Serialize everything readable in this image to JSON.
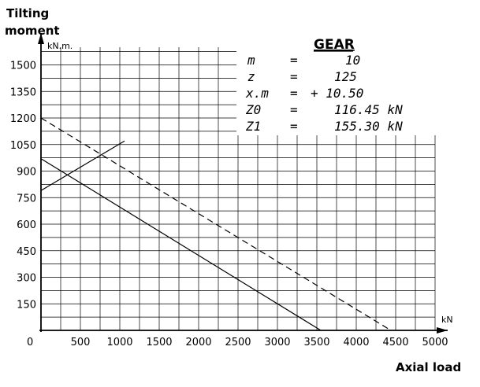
{
  "chart_data": {
    "type": "line",
    "ylabel_line1": "Tilting",
    "ylabel_line2": "moment",
    "yunit": "kN.m.",
    "xlabel": "Axial load",
    "xunit": "kN",
    "origin_label": "0",
    "xlim": [
      0,
      5000
    ],
    "ylim": [
      0,
      1600
    ],
    "xticks": [
      500,
      1000,
      1500,
      2000,
      2500,
      3000,
      3500,
      4000,
      4500,
      5000
    ],
    "xtick_labels": [
      "500",
      "1000",
      "1500",
      "2000",
      "2500",
      "3000",
      "3500",
      "4000",
      "4500",
      "5000"
    ],
    "yticks": [
      150,
      300,
      450,
      600,
      750,
      900,
      1050,
      1200,
      1350,
      1500
    ],
    "ytick_labels": [
      "150",
      "300",
      "450",
      "600",
      "750",
      "900",
      "1050",
      "1200",
      "1350",
      "1500"
    ],
    "grid": true,
    "series": [
      {
        "style": "solid",
        "x": [
          0,
          3550
        ],
        "y": [
          970,
          0
        ]
      },
      {
        "style": "dashed",
        "x": [
          0,
          4440
        ],
        "y": [
          1200,
          0
        ]
      },
      {
        "style": "solid",
        "x": [
          0,
          1060
        ],
        "y": [
          790,
          1070
        ]
      }
    ],
    "legend_box": {
      "title": "GEAR",
      "rows": [
        {
          "name": "m",
          "eq": "=",
          "value": "10"
        },
        {
          "name": "z",
          "eq": "=",
          "value": "125"
        },
        {
          "name": "x.m",
          "eq": "=",
          "value": "+ 10.50"
        },
        {
          "name": "Z0",
          "eq": "=",
          "value": "116.45 kN"
        },
        {
          "name": "Z1",
          "eq": "=",
          "value": "155.30 kN"
        }
      ]
    }
  }
}
